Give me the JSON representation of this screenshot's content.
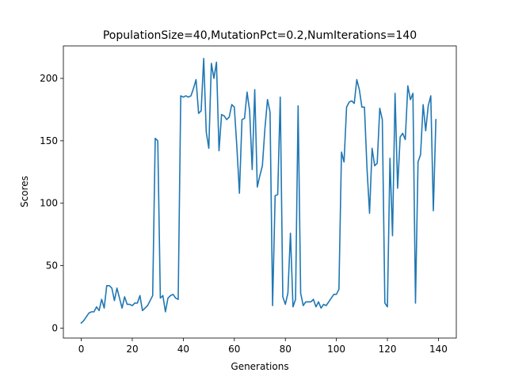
{
  "chart_data": {
    "type": "line",
    "title": "PopulationSize=40,MutationPct=0.2,NumIterations=140",
    "xlabel": "Generations",
    "ylabel": "Scores",
    "xlim": [
      -7,
      147
    ],
    "ylim": [
      -8,
      226
    ],
    "xticks": [
      0,
      20,
      40,
      60,
      80,
      100,
      120,
      140
    ],
    "yticks": [
      0,
      50,
      100,
      150,
      200
    ],
    "grid": false,
    "line_color": "#1f77b4",
    "series": [
      {
        "x": [
          0,
          1,
          2,
          3,
          4,
          5,
          6,
          7,
          8,
          9,
          10,
          11,
          12,
          13,
          14,
          15,
          16,
          17,
          18,
          19,
          20,
          21,
          22,
          23,
          24,
          25,
          26,
          27,
          28,
          29,
          30,
          31,
          32,
          33,
          34,
          35,
          36,
          37,
          38,
          39,
          40,
          41,
          42,
          43,
          44,
          45,
          46,
          47,
          48,
          49,
          50,
          51,
          52,
          53,
          54,
          55,
          56,
          57,
          58,
          59,
          60,
          61,
          62,
          63,
          64,
          65,
          66,
          67,
          68,
          69,
          70,
          71,
          72,
          73,
          74,
          75,
          76,
          77,
          78,
          79,
          80,
          81,
          82,
          83,
          84,
          85,
          86,
          87,
          88,
          89,
          90,
          91,
          92,
          93,
          94,
          95,
          96,
          97,
          98,
          99,
          100,
          101,
          102,
          103,
          104,
          105,
          106,
          107,
          108,
          109,
          110,
          111,
          112,
          113,
          114,
          115,
          116,
          117,
          118,
          119,
          120,
          121,
          122,
          123,
          124,
          125,
          126,
          127,
          128,
          129,
          130,
          131,
          132,
          133,
          134,
          135,
          136,
          137,
          138,
          139
        ],
        "values": [
          4,
          6,
          9,
          12,
          13,
          13,
          17,
          14,
          23,
          16,
          34,
          34,
          32,
          22,
          32,
          24,
          16,
          25,
          19,
          19,
          18,
          20,
          20,
          26,
          14,
          16,
          18,
          22,
          26,
          152,
          150,
          24,
          26,
          13,
          24,
          26,
          27,
          24,
          23,
          186,
          185,
          186,
          185,
          186,
          192,
          199,
          172,
          174,
          216,
          157,
          144,
          212,
          200,
          213,
          142,
          171,
          170,
          167,
          169,
          179,
          177,
          145,
          108,
          167,
          168,
          189,
          174,
          127,
          191,
          113,
          122,
          130,
          160,
          183,
          173,
          18,
          106,
          107,
          185,
          25,
          19,
          28,
          76,
          17,
          23,
          178,
          28,
          18,
          21,
          21,
          21,
          23,
          17,
          21,
          16,
          19,
          18,
          21,
          24,
          27,
          27,
          31,
          141,
          133,
          177,
          181,
          182,
          180,
          199,
          191,
          177,
          177,
          128,
          92,
          144,
          130,
          132,
          176,
          167,
          20,
          17,
          136,
          74,
          188,
          112,
          153,
          156,
          151,
          194,
          183,
          188,
          20,
          133,
          139,
          179,
          158,
          178,
          186,
          94,
          167
        ]
      }
    ]
  }
}
